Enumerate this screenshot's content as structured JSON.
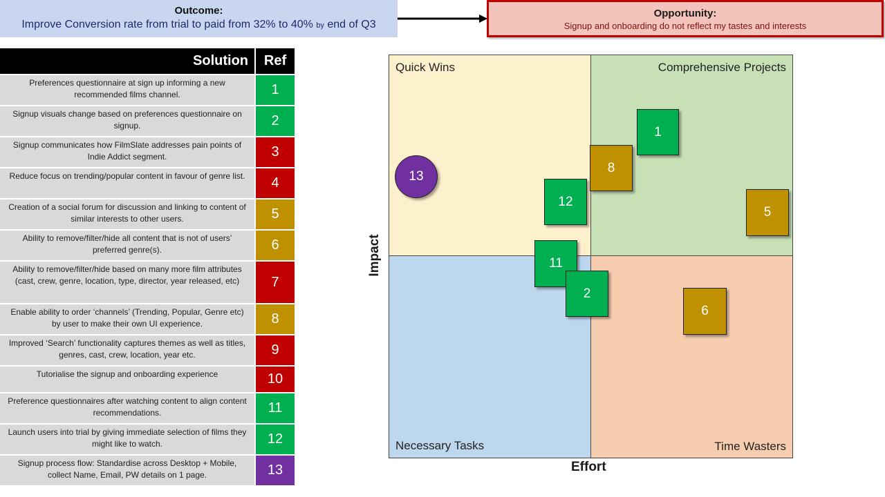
{
  "outcome": {
    "label": "Outcome:",
    "text_main": "Improve Conversion rate from trial to paid from 32% to 40%",
    "text_by": "by",
    "text_end": "end of Q3"
  },
  "opportunity": {
    "label": "Opportunity:",
    "text": "Signup and onboarding do not reflect my tastes and interests"
  },
  "colors": {
    "green": "#00b050",
    "red": "#c00000",
    "gold": "#bf9000",
    "purple": "#7030a0"
  },
  "table": {
    "header_solution": "Solution",
    "header_ref": "Ref",
    "rows": [
      {
        "text": "Preferences questionnaire at sign up informing a new recommended films channel.",
        "ref": "1",
        "color": "#00b050"
      },
      {
        "text": "Signup visuals change based on preferences questionnaire on signup.",
        "ref": "2",
        "color": "#00b050"
      },
      {
        "text": "Signup communicates how FilmSlate addresses pain points of Indie Addict segment.",
        "ref": "3",
        "color": "#c00000"
      },
      {
        "text": "Reduce focus on trending/popular content in favour of genre list.",
        "ref": "4",
        "color": "#c00000"
      },
      {
        "text": "Creation of a social forum for discussion and linking to content of similar interests to other users.",
        "ref": "5",
        "color": "#bf9000"
      },
      {
        "text": "Ability to remove/filter/hide all content that is not of users’ preferred genre(s).",
        "ref": "6",
        "color": "#bf9000"
      },
      {
        "text": "Ability to remove/filter/hide based on many more film attributes (cast, crew, genre, location, type, director, year released, etc)",
        "ref": "7",
        "color": "#c00000"
      },
      {
        "text": "Enable ability to order ‘channels’ (Trending, Popular, Genre etc) by user to make their own UI experience.",
        "ref": "8",
        "color": "#bf9000"
      },
      {
        "text": "Improved ‘Search’ functionality captures themes as well as titles, genres, cast, crew, location, year etc.",
        "ref": "9",
        "color": "#c00000"
      },
      {
        "text": "Tutorialise the signup and onboarding experience",
        "ref": "10",
        "color": "#c00000"
      },
      {
        "text": "Preference questionnaires after watching content to align content recommendations.",
        "ref": "11",
        "color": "#00b050"
      },
      {
        "text": "Launch users into trial by giving immediate selection of films they might like to watch.",
        "ref": "12",
        "color": "#00b050"
      },
      {
        "text": "Signup process flow: Standardise across Desktop + Mobile, collect Name, Email, PW details on 1 page.",
        "ref": "13",
        "color": "#7030a0"
      }
    ]
  },
  "matrix": {
    "quadrants": {
      "top_left": "Quick Wins",
      "top_right": "Comprehensive Projects",
      "bottom_left": "Necessary Tasks",
      "bottom_right": "Time Wasters"
    },
    "x_label": "Effort",
    "y_label": "Impact",
    "items": [
      {
        "ref": "1",
        "shape": "square",
        "color": "#00b050"
      },
      {
        "ref": "8",
        "shape": "square",
        "color": "#bf9000"
      },
      {
        "ref": "12",
        "shape": "square",
        "color": "#00b050"
      },
      {
        "ref": "5",
        "shape": "square",
        "color": "#bf9000"
      },
      {
        "ref": "13",
        "shape": "circle",
        "color": "#7030a0"
      },
      {
        "ref": "11",
        "shape": "square",
        "color": "#00b050"
      },
      {
        "ref": "2",
        "shape": "square",
        "color": "#00b050"
      },
      {
        "ref": "6",
        "shape": "square",
        "color": "#bf9000"
      }
    ]
  }
}
